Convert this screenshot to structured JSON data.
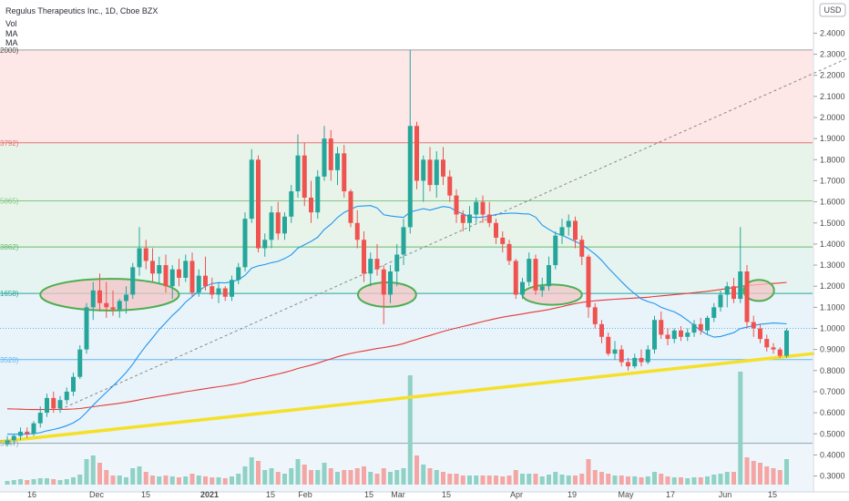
{
  "header": {
    "symbol_line": "Regulus Therapeutics Inc., 1D, Cboe BZX",
    "indicators": [
      "Vol",
      "MA",
      "MA"
    ],
    "currency": "USD"
  },
  "colors": {
    "up": "#26a69a",
    "down": "#ef5350",
    "ma_fast": "#2196f3",
    "ma_slow": "#e53935",
    "trendline": "#f5e027",
    "ellipse_fill": "#f3c6c6",
    "ellipse_stroke": "#4caf50"
  },
  "chart_data": {
    "type": "candlestick",
    "y_axis": {
      "min": 0.25,
      "max": 2.5,
      "ticks": [
        "2.4000",
        "2.3000",
        "2.2000",
        "2.1000",
        "2.0000",
        "1.9000",
        "1.8000",
        "1.7000",
        "1.6000",
        "1.5000",
        "1.4000",
        "1.3000",
        "1.2000",
        "1.1000",
        "1.0000",
        "0.9000",
        "0.8000",
        "0.7000",
        "0.6000",
        "0.5000",
        "0.4000",
        "0.3000"
      ]
    },
    "x_axis": {
      "labels": [
        "16",
        "Dec",
        "15",
        "2021",
        "15",
        "Feb",
        "15",
        "Mar",
        "15",
        "Apr",
        "19",
        "May",
        "17",
        "Jun",
        "15"
      ]
    },
    "fib_levels": [
      {
        "label": "2000)",
        "value": 2.32
      },
      {
        "label": "3792)",
        "value": 1.88
      },
      {
        "label": "5065)",
        "value": 1.605
      },
      {
        "label": "3862)",
        "value": 1.386
      },
      {
        "label": "1658)",
        "value": 1.166
      },
      {
        "label": "3520)",
        "value": 0.852
      },
      {
        "label": "5747)",
        "value": 0.455
      }
    ],
    "dotted_line_value": 1.0,
    "candles": [
      {
        "o": 0.45,
        "h": 0.49,
        "l": 0.44,
        "c": 0.47,
        "v": 0.2
      },
      {
        "o": 0.47,
        "h": 0.5,
        "l": 0.45,
        "c": 0.49,
        "v": 0.25
      },
      {
        "o": 0.49,
        "h": 0.53,
        "l": 0.47,
        "c": 0.51,
        "v": 0.3
      },
      {
        "o": 0.51,
        "h": 0.53,
        "l": 0.48,
        "c": 0.5,
        "v": 0.25
      },
      {
        "o": 0.5,
        "h": 0.56,
        "l": 0.49,
        "c": 0.55,
        "v": 0.3
      },
      {
        "o": 0.55,
        "h": 0.63,
        "l": 0.53,
        "c": 0.6,
        "v": 0.35
      },
      {
        "o": 0.6,
        "h": 0.69,
        "l": 0.58,
        "c": 0.67,
        "v": 0.35
      },
      {
        "o": 0.67,
        "h": 0.7,
        "l": 0.6,
        "c": 0.62,
        "v": 0.3
      },
      {
        "o": 0.62,
        "h": 0.68,
        "l": 0.6,
        "c": 0.66,
        "v": 0.25
      },
      {
        "o": 0.66,
        "h": 0.72,
        "l": 0.64,
        "c": 0.7,
        "v": 0.3
      },
      {
        "o": 0.7,
        "h": 0.79,
        "l": 0.68,
        "c": 0.77,
        "v": 0.4
      },
      {
        "o": 0.77,
        "h": 0.92,
        "l": 0.76,
        "c": 0.9,
        "v": 0.55
      },
      {
        "o": 0.9,
        "h": 1.12,
        "l": 0.88,
        "c": 1.1,
        "v": 1.4
      },
      {
        "o": 1.1,
        "h": 1.22,
        "l": 1.04,
        "c": 1.18,
        "v": 1.6
      },
      {
        "o": 1.18,
        "h": 1.26,
        "l": 1.08,
        "c": 1.12,
        "v": 1.2
      },
      {
        "o": 1.12,
        "h": 1.22,
        "l": 1.05,
        "c": 1.1,
        "v": 0.8
      },
      {
        "o": 1.1,
        "h": 1.18,
        "l": 1.06,
        "c": 1.09,
        "v": 0.5
      },
      {
        "o": 1.09,
        "h": 1.14,
        "l": 1.05,
        "c": 1.13,
        "v": 0.5
      },
      {
        "o": 1.13,
        "h": 1.2,
        "l": 1.07,
        "c": 1.16,
        "v": 0.4
      },
      {
        "o": 1.16,
        "h": 1.31,
        "l": 1.14,
        "c": 1.29,
        "v": 0.9
      },
      {
        "o": 1.29,
        "h": 1.48,
        "l": 1.25,
        "c": 1.38,
        "v": 1.0
      },
      {
        "o": 1.38,
        "h": 1.42,
        "l": 1.28,
        "c": 1.32,
        "v": 0.7
      },
      {
        "o": 1.32,
        "h": 1.38,
        "l": 1.22,
        "c": 1.26,
        "v": 0.5
      },
      {
        "o": 1.26,
        "h": 1.34,
        "l": 1.21,
        "c": 1.3,
        "v": 0.45
      },
      {
        "o": 1.3,
        "h": 1.35,
        "l": 1.17,
        "c": 1.2,
        "v": 0.5
      },
      {
        "o": 1.2,
        "h": 1.3,
        "l": 1.14,
        "c": 1.28,
        "v": 0.45
      },
      {
        "o": 1.28,
        "h": 1.33,
        "l": 1.2,
        "c": 1.24,
        "v": 0.4
      },
      {
        "o": 1.24,
        "h": 1.35,
        "l": 1.22,
        "c": 1.32,
        "v": 0.45
      },
      {
        "o": 1.32,
        "h": 1.36,
        "l": 1.15,
        "c": 1.17,
        "v": 0.6
      },
      {
        "o": 1.17,
        "h": 1.28,
        "l": 1.15,
        "c": 1.25,
        "v": 0.5
      },
      {
        "o": 1.25,
        "h": 1.34,
        "l": 1.18,
        "c": 1.2,
        "v": 0.45
      },
      {
        "o": 1.2,
        "h": 1.24,
        "l": 1.14,
        "c": 1.16,
        "v": 0.4
      },
      {
        "o": 1.16,
        "h": 1.22,
        "l": 1.12,
        "c": 1.19,
        "v": 0.4
      },
      {
        "o": 1.19,
        "h": 1.2,
        "l": 1.13,
        "c": 1.15,
        "v": 0.35
      },
      {
        "o": 1.15,
        "h": 1.25,
        "l": 1.13,
        "c": 1.23,
        "v": 0.45
      },
      {
        "o": 1.23,
        "h": 1.31,
        "l": 1.21,
        "c": 1.29,
        "v": 0.6
      },
      {
        "o": 1.29,
        "h": 1.55,
        "l": 1.27,
        "c": 1.52,
        "v": 1.0
      },
      {
        "o": 1.52,
        "h": 1.85,
        "l": 1.5,
        "c": 1.8,
        "v": 1.5
      },
      {
        "o": 1.8,
        "h": 1.82,
        "l": 1.36,
        "c": 1.38,
        "v": 1.3
      },
      {
        "o": 1.38,
        "h": 1.45,
        "l": 1.34,
        "c": 1.42,
        "v": 0.8
      },
      {
        "o": 1.42,
        "h": 1.58,
        "l": 1.38,
        "c": 1.55,
        "v": 0.9
      },
      {
        "o": 1.55,
        "h": 1.6,
        "l": 1.42,
        "c": 1.45,
        "v": 0.7
      },
      {
        "o": 1.45,
        "h": 1.55,
        "l": 1.42,
        "c": 1.53,
        "v": 0.6
      },
      {
        "o": 1.53,
        "h": 1.68,
        "l": 1.5,
        "c": 1.65,
        "v": 0.9
      },
      {
        "o": 1.65,
        "h": 1.92,
        "l": 1.62,
        "c": 1.82,
        "v": 1.4
      },
      {
        "o": 1.82,
        "h": 1.88,
        "l": 1.58,
        "c": 1.62,
        "v": 1.1
      },
      {
        "o": 1.62,
        "h": 1.7,
        "l": 1.5,
        "c": 1.55,
        "v": 0.8
      },
      {
        "o": 1.55,
        "h": 1.75,
        "l": 1.52,
        "c": 1.72,
        "v": 0.8
      },
      {
        "o": 1.72,
        "h": 1.96,
        "l": 1.7,
        "c": 1.9,
        "v": 1.2
      },
      {
        "o": 1.9,
        "h": 1.94,
        "l": 1.7,
        "c": 1.75,
        "v": 0.9
      },
      {
        "o": 1.75,
        "h": 1.86,
        "l": 1.68,
        "c": 1.83,
        "v": 0.7
      },
      {
        "o": 1.83,
        "h": 1.87,
        "l": 1.62,
        "c": 1.65,
        "v": 0.8
      },
      {
        "o": 1.65,
        "h": 1.66,
        "l": 1.48,
        "c": 1.5,
        "v": 0.8
      },
      {
        "o": 1.5,
        "h": 1.56,
        "l": 1.38,
        "c": 1.42,
        "v": 0.9
      },
      {
        "o": 1.42,
        "h": 1.46,
        "l": 1.22,
        "c": 1.26,
        "v": 1.0
      },
      {
        "o": 1.26,
        "h": 1.36,
        "l": 1.2,
        "c": 1.33,
        "v": 0.7
      },
      {
        "o": 1.33,
        "h": 1.4,
        "l": 1.25,
        "c": 1.28,
        "v": 0.6
      },
      {
        "o": 1.28,
        "h": 1.3,
        "l": 1.02,
        "c": 1.16,
        "v": 0.9
      },
      {
        "o": 1.16,
        "h": 1.3,
        "l": 1.12,
        "c": 1.27,
        "v": 0.7
      },
      {
        "o": 1.27,
        "h": 1.4,
        "l": 1.2,
        "c": 1.35,
        "v": 0.8
      },
      {
        "o": 1.35,
        "h": 1.52,
        "l": 1.3,
        "c": 1.48,
        "v": 0.9
      },
      {
        "o": 1.48,
        "h": 2.32,
        "l": 1.45,
        "c": 1.96,
        "v": 6.0
      },
      {
        "o": 1.96,
        "h": 1.98,
        "l": 1.66,
        "c": 1.7,
        "v": 1.6
      },
      {
        "o": 1.7,
        "h": 1.82,
        "l": 1.6,
        "c": 1.8,
        "v": 1.1
      },
      {
        "o": 1.8,
        "h": 1.86,
        "l": 1.65,
        "c": 1.68,
        "v": 0.9
      },
      {
        "o": 1.68,
        "h": 1.84,
        "l": 1.62,
        "c": 1.8,
        "v": 0.8
      },
      {
        "o": 1.8,
        "h": 1.86,
        "l": 1.68,
        "c": 1.72,
        "v": 0.7
      },
      {
        "o": 1.72,
        "h": 1.75,
        "l": 1.6,
        "c": 1.63,
        "v": 0.6
      },
      {
        "o": 1.63,
        "h": 1.66,
        "l": 1.5,
        "c": 1.54,
        "v": 0.6
      },
      {
        "o": 1.54,
        "h": 1.56,
        "l": 1.46,
        "c": 1.5,
        "v": 0.5
      },
      {
        "o": 1.5,
        "h": 1.58,
        "l": 1.46,
        "c": 1.54,
        "v": 0.5
      },
      {
        "o": 1.54,
        "h": 1.62,
        "l": 1.5,
        "c": 1.6,
        "v": 0.5
      },
      {
        "o": 1.6,
        "h": 1.63,
        "l": 1.5,
        "c": 1.54,
        "v": 0.5
      },
      {
        "o": 1.54,
        "h": 1.6,
        "l": 1.48,
        "c": 1.5,
        "v": 0.5
      },
      {
        "o": 1.5,
        "h": 1.52,
        "l": 1.4,
        "c": 1.43,
        "v": 0.5
      },
      {
        "o": 1.43,
        "h": 1.46,
        "l": 1.36,
        "c": 1.4,
        "v": 0.45
      },
      {
        "o": 1.4,
        "h": 1.42,
        "l": 1.3,
        "c": 1.32,
        "v": 0.5
      },
      {
        "o": 1.32,
        "h": 1.33,
        "l": 1.14,
        "c": 1.16,
        "v": 0.8
      },
      {
        "o": 1.16,
        "h": 1.24,
        "l": 1.14,
        "c": 1.22,
        "v": 0.6
      },
      {
        "o": 1.22,
        "h": 1.36,
        "l": 1.2,
        "c": 1.33,
        "v": 0.6
      },
      {
        "o": 1.33,
        "h": 1.35,
        "l": 1.16,
        "c": 1.18,
        "v": 0.6
      },
      {
        "o": 1.18,
        "h": 1.24,
        "l": 1.15,
        "c": 1.2,
        "v": 0.45
      },
      {
        "o": 1.2,
        "h": 1.34,
        "l": 1.18,
        "c": 1.3,
        "v": 0.55
      },
      {
        "o": 1.3,
        "h": 1.46,
        "l": 1.28,
        "c": 1.44,
        "v": 0.7
      },
      {
        "o": 1.44,
        "h": 1.52,
        "l": 1.4,
        "c": 1.48,
        "v": 0.55
      },
      {
        "o": 1.48,
        "h": 1.54,
        "l": 1.44,
        "c": 1.51,
        "v": 0.5
      },
      {
        "o": 1.51,
        "h": 1.53,
        "l": 1.38,
        "c": 1.42,
        "v": 0.5
      },
      {
        "o": 1.42,
        "h": 1.44,
        "l": 1.3,
        "c": 1.34,
        "v": 0.6
      },
      {
        "o": 1.34,
        "h": 1.35,
        "l": 1.05,
        "c": 1.1,
        "v": 1.4
      },
      {
        "o": 1.1,
        "h": 1.12,
        "l": 1.0,
        "c": 1.02,
        "v": 0.8
      },
      {
        "o": 1.02,
        "h": 1.04,
        "l": 0.93,
        "c": 0.96,
        "v": 0.7
      },
      {
        "o": 0.96,
        "h": 0.98,
        "l": 0.87,
        "c": 0.88,
        "v": 0.6
      },
      {
        "o": 0.88,
        "h": 0.94,
        "l": 0.85,
        "c": 0.9,
        "v": 0.5
      },
      {
        "o": 0.9,
        "h": 0.92,
        "l": 0.82,
        "c": 0.84,
        "v": 0.5
      },
      {
        "o": 0.84,
        "h": 0.86,
        "l": 0.8,
        "c": 0.82,
        "v": 0.45
      },
      {
        "o": 0.82,
        "h": 0.88,
        "l": 0.81,
        "c": 0.86,
        "v": 0.45
      },
      {
        "o": 0.86,
        "h": 0.9,
        "l": 0.82,
        "c": 0.84,
        "v": 0.4
      },
      {
        "o": 0.84,
        "h": 0.92,
        "l": 0.83,
        "c": 0.9,
        "v": 0.45
      },
      {
        "o": 0.9,
        "h": 1.06,
        "l": 0.88,
        "c": 1.04,
        "v": 0.7
      },
      {
        "o": 1.04,
        "h": 1.08,
        "l": 0.95,
        "c": 0.97,
        "v": 0.6
      },
      {
        "o": 0.97,
        "h": 1.0,
        "l": 0.92,
        "c": 0.95,
        "v": 0.45
      },
      {
        "o": 0.95,
        "h": 1.0,
        "l": 0.93,
        "c": 0.99,
        "v": 0.4
      },
      {
        "o": 0.99,
        "h": 1.01,
        "l": 0.94,
        "c": 0.96,
        "v": 0.4
      },
      {
        "o": 0.96,
        "h": 1.0,
        "l": 0.94,
        "c": 0.98,
        "v": 0.35
      },
      {
        "o": 0.98,
        "h": 1.04,
        "l": 0.96,
        "c": 1.02,
        "v": 0.4
      },
      {
        "o": 1.02,
        "h": 1.05,
        "l": 0.97,
        "c": 0.99,
        "v": 0.4
      },
      {
        "o": 0.99,
        "h": 1.06,
        "l": 0.97,
        "c": 1.05,
        "v": 0.45
      },
      {
        "o": 1.05,
        "h": 1.12,
        "l": 1.03,
        "c": 1.1,
        "v": 0.55
      },
      {
        "o": 1.1,
        "h": 1.18,
        "l": 1.08,
        "c": 1.16,
        "v": 0.6
      },
      {
        "o": 1.16,
        "h": 1.22,
        "l": 1.1,
        "c": 1.2,
        "v": 0.7
      },
      {
        "o": 1.2,
        "h": 1.24,
        "l": 1.12,
        "c": 1.14,
        "v": 0.7
      },
      {
        "o": 1.14,
        "h": 1.48,
        "l": 1.12,
        "c": 1.27,
        "v": 6.2
      },
      {
        "o": 1.27,
        "h": 1.3,
        "l": 1.0,
        "c": 1.03,
        "v": 1.5
      },
      {
        "o": 1.03,
        "h": 1.06,
        "l": 0.96,
        "c": 1.0,
        "v": 1.3
      },
      {
        "o": 1.0,
        "h": 1.02,
        "l": 0.93,
        "c": 0.95,
        "v": 1.2
      },
      {
        "o": 0.95,
        "h": 0.97,
        "l": 0.89,
        "c": 0.91,
        "v": 1.0
      },
      {
        "o": 0.91,
        "h": 0.93,
        "l": 0.88,
        "c": 0.9,
        "v": 0.9
      },
      {
        "o": 0.9,
        "h": 0.91,
        "l": 0.86,
        "c": 0.87,
        "v": 0.8
      },
      {
        "o": 0.87,
        "h": 1.0,
        "l": 0.86,
        "c": 0.99,
        "v": 1.4
      }
    ],
    "annotations": {
      "trendline": {
        "from": {
          "i": -5,
          "v": 0.45
        },
        "to": {
          "i": 122,
          "v": 0.88
        }
      },
      "dashed_line": {
        "from": {
          "i": 8,
          "v": 0.615
        },
        "to": {
          "i": 130,
          "v": 2.32
        }
      },
      "ellipses": [
        {
          "i_center": 15.5,
          "v_center": 1.16,
          "i_radius": 10.5,
          "v_radius": 0.075
        },
        {
          "i_center": 57.5,
          "v_center": 1.16,
          "i_radius": 4.4,
          "v_radius": 0.058
        },
        {
          "i_center": 82.5,
          "v_center": 1.16,
          "i_radius": 4.5,
          "v_radius": 0.048
        },
        {
          "i_center": 113.8,
          "v_center": 1.18,
          "i_radius": 2.3,
          "v_radius": 0.05
        }
      ]
    }
  }
}
